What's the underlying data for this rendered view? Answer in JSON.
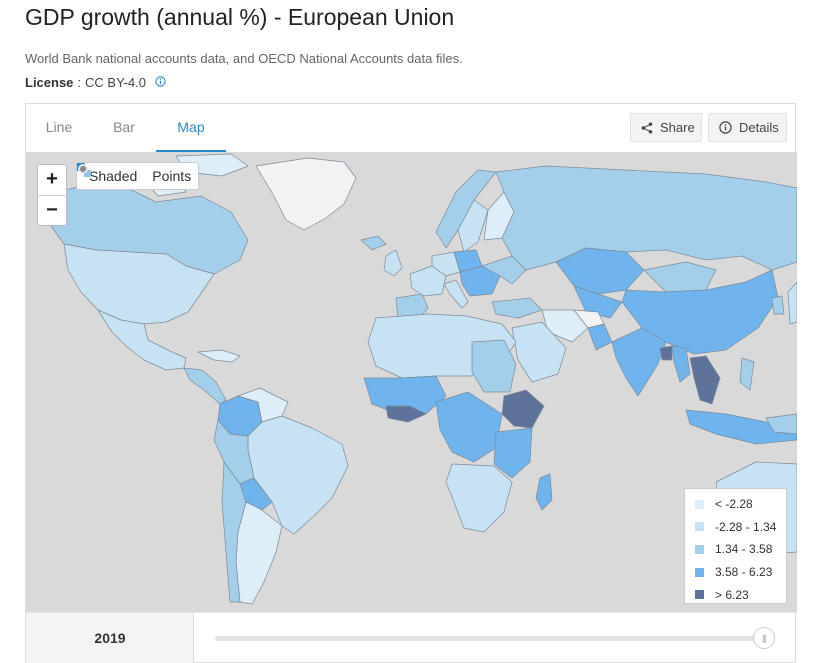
{
  "header": {
    "title": "GDP growth (annual %) - European Union",
    "source": "World Bank national accounts data, and OECD National Accounts data files.",
    "license_label": "License",
    "license_sep": ":",
    "license_value": "CC BY-4.0"
  },
  "tabs": [
    {
      "label": "Line",
      "active": false
    },
    {
      "label": "Bar",
      "active": false
    },
    {
      "label": "Map",
      "active": true
    }
  ],
  "toolbar": {
    "share_label": "Share",
    "details_label": "Details"
  },
  "map": {
    "zoom_in": "+",
    "zoom_out": "−",
    "mode_shaded": "Shaded",
    "mode_points": "Points",
    "selected_mode": "Shaded",
    "ocean_color": "#d9d9d9",
    "nodata_color": "#f2f2f2"
  },
  "legend": [
    {
      "label": "< -2.28",
      "color": "#ddeef8"
    },
    {
      "label": "-2.28 - 1.34",
      "color": "#c7e3f3"
    },
    {
      "label": "1.34 - 3.58",
      "color": "#a4cfea"
    },
    {
      "label": "3.58 - 6.23",
      "color": "#6fb4ec"
    },
    {
      "label": "> 6.23",
      "color": "#5d7399"
    }
  ],
  "timeline": {
    "year": "2019"
  },
  "colors": {
    "accent": "#2a8ac9"
  }
}
